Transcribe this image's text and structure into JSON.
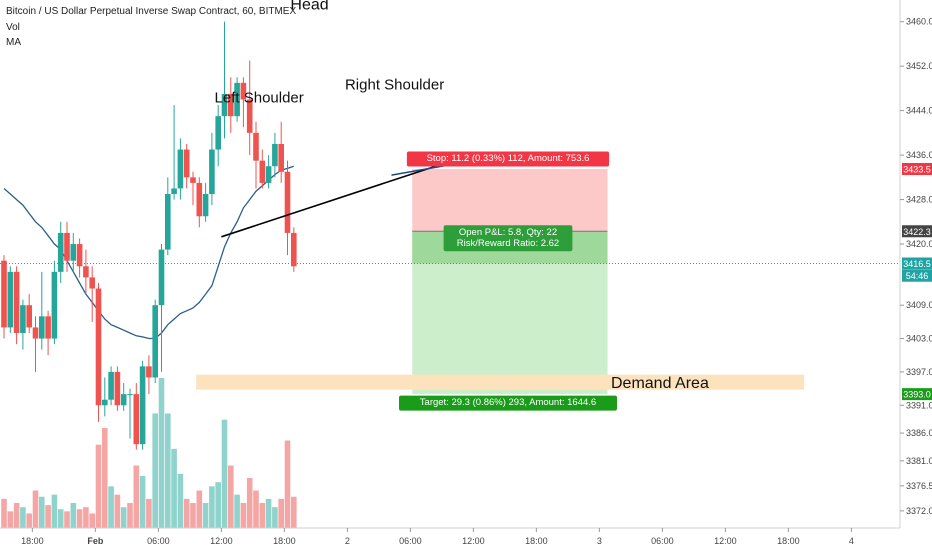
{
  "header": {
    "title": "Bitcoin / US Dollar Perpetual Inverse Swap Contract, 60, BITMEX",
    "indicators": [
      "Vol",
      "MA"
    ]
  },
  "colors": {
    "up": "#26a69a",
    "down": "#ef5350",
    "up_vol": "#8fd3cc",
    "down_vol": "#f4a6a4",
    "ma": "#2a5f8a",
    "stop_zone": "#fcc8c8",
    "target_zone": "#cdeecb",
    "current_zone": "#9fd89b",
    "demand_zone": "#fde3bd",
    "stop_label_bg": "#f23645",
    "target_label_bg": "#1a9c1a",
    "pnl_label_bg": "#2e9e3a",
    "price_line": "#22a3a3"
  },
  "chart_data": {
    "type": "candlestick",
    "y_axis": {
      "range": [
        3370,
        3463
      ],
      "ticks": [
        "3460.0",
        "3452.0",
        "3444.0",
        "3436.0",
        "3428.0",
        "3420.0",
        "3409.0",
        "3403.0",
        "3397.0",
        "3391.0",
        "3386.0",
        "3381.0",
        "3376.5",
        "3372.0"
      ],
      "tick_values": [
        3460,
        3452,
        3444,
        3436,
        3428,
        3420,
        3409,
        3403,
        3397,
        3391,
        3386,
        3381,
        3376.5,
        3372
      ]
    },
    "x_axis": {
      "labels": [
        "18:00",
        "Feb",
        "06:00",
        "12:00",
        "18:00",
        "2",
        "06:00",
        "12:00",
        "18:00",
        "3",
        "06:00",
        "12:00",
        "18:00",
        "4"
      ],
      "label_bars": [
        4.5,
        14.5,
        24.5,
        34.5,
        44.5,
        54.5,
        64.5,
        74.5,
        84.5,
        94.5,
        104.5,
        114.5,
        124.5,
        134.5
      ]
    },
    "price_labels": [
      {
        "name": "stop-price",
        "text": "3433.5",
        "value": 3433.5,
        "color": "#f23645"
      },
      {
        "name": "entry-price",
        "text": "3422.3",
        "value": 3422.3,
        "color": "#444444"
      },
      {
        "name": "current-price",
        "text": "3416.5",
        "value": 3416.5,
        "color": "#22a3a3"
      },
      {
        "name": "countdown",
        "text": "54:46",
        "value": 3414.3,
        "color": "#22a3a3"
      },
      {
        "name": "target-price",
        "text": "3393.0",
        "value": 3393.0,
        "color": "#1a9c1a"
      }
    ],
    "candles": [
      {
        "o": 3417,
        "h": 3418,
        "l": 3403,
        "c": 3405
      },
      {
        "o": 3405,
        "h": 3416,
        "l": 3404,
        "c": 3415
      },
      {
        "o": 3415,
        "h": 3416,
        "l": 3402,
        "c": 3404
      },
      {
        "o": 3404,
        "h": 3410,
        "l": 3401,
        "c": 3409
      },
      {
        "o": 3409,
        "h": 3411,
        "l": 3404,
        "c": 3405
      },
      {
        "o": 3405,
        "h": 3407,
        "l": 3397,
        "c": 3403
      },
      {
        "o": 3403,
        "h": 3415,
        "l": 3401,
        "c": 3407
      },
      {
        "o": 3407,
        "h": 3408,
        "l": 3400,
        "c": 3403
      },
      {
        "o": 3403,
        "h": 3417,
        "l": 3402,
        "c": 3415
      },
      {
        "o": 3415,
        "h": 3424,
        "l": 3413,
        "c": 3422
      },
      {
        "o": 3422,
        "h": 3424,
        "l": 3415,
        "c": 3417
      },
      {
        "o": 3417,
        "h": 3422,
        "l": 3415,
        "c": 3420
      },
      {
        "o": 3420,
        "h": 3421,
        "l": 3414,
        "c": 3416
      },
      {
        "o": 3416,
        "h": 3419,
        "l": 3411,
        "c": 3414
      },
      {
        "o": 3414,
        "h": 3416,
        "l": 3406,
        "c": 3412
      },
      {
        "o": 3412,
        "h": 3413,
        "l": 3388,
        "c": 3391
      },
      {
        "o": 3391,
        "h": 3396,
        "l": 3389,
        "c": 3392
      },
      {
        "o": 3392,
        "h": 3398,
        "l": 3391,
        "c": 3397
      },
      {
        "o": 3397,
        "h": 3398,
        "l": 3390,
        "c": 3391
      },
      {
        "o": 3391,
        "h": 3395,
        "l": 3390,
        "c": 3393
      },
      {
        "o": 3393,
        "h": 3394,
        "l": 3385,
        "c": 3393
      },
      {
        "o": 3393,
        "h": 3395,
        "l": 3383,
        "c": 3384
      },
      {
        "o": 3384,
        "h": 3399,
        "l": 3383,
        "c": 3398
      },
      {
        "o": 3398,
        "h": 3400,
        "l": 3393,
        "c": 3396
      },
      {
        "o": 3396,
        "h": 3410,
        "l": 3395,
        "c": 3409
      },
      {
        "o": 3409,
        "h": 3420,
        "l": 3397,
        "c": 3419
      },
      {
        "o": 3419,
        "h": 3432,
        "l": 3418,
        "c": 3429
      },
      {
        "o": 3429,
        "h": 3445,
        "l": 3428,
        "c": 3430
      },
      {
        "o": 3430,
        "h": 3439,
        "l": 3428,
        "c": 3437
      },
      {
        "o": 3437,
        "h": 3438,
        "l": 3430,
        "c": 3432
      },
      {
        "o": 3432,
        "h": 3433,
        "l": 3427,
        "c": 3431
      },
      {
        "o": 3431,
        "h": 3432,
        "l": 3423,
        "c": 3425
      },
      {
        "o": 3425,
        "h": 3431,
        "l": 3424,
        "c": 3429
      },
      {
        "o": 3429,
        "h": 3440,
        "l": 3427,
        "c": 3437
      },
      {
        "o": 3437,
        "h": 3445,
        "l": 3434,
        "c": 3443
      },
      {
        "o": 3443,
        "h": 3460,
        "l": 3439,
        "c": 3447
      },
      {
        "o": 3447,
        "h": 3450,
        "l": 3440,
        "c": 3443
      },
      {
        "o": 3443,
        "h": 3450,
        "l": 3442,
        "c": 3449
      },
      {
        "o": 3449,
        "h": 3450,
        "l": 3441,
        "c": 3446
      },
      {
        "o": 3446,
        "h": 3453,
        "l": 3436,
        "c": 3440
      },
      {
        "o": 3440,
        "h": 3442,
        "l": 3430,
        "c": 3435
      },
      {
        "o": 3435,
        "h": 3437,
        "l": 3430,
        "c": 3431
      },
      {
        "o": 3431,
        "h": 3436,
        "l": 3430,
        "c": 3434
      },
      {
        "o": 3434,
        "h": 3440,
        "l": 3432,
        "c": 3438
      },
      {
        "o": 3438,
        "h": 3442,
        "l": 3431,
        "c": 3433
      },
      {
        "o": 3433,
        "h": 3435,
        "l": 3418,
        "c": 3422
      },
      {
        "o": 3422,
        "h": 3423,
        "l": 3415,
        "c": 3416
      }
    ],
    "volume": [
      {
        "v": 14,
        "up": false
      },
      {
        "v": 8,
        "up": false
      },
      {
        "v": 12,
        "up": false
      },
      {
        "v": 10,
        "up": true
      },
      {
        "v": 7,
        "up": false
      },
      {
        "v": 18,
        "up": false
      },
      {
        "v": 15,
        "up": true
      },
      {
        "v": 11,
        "up": false
      },
      {
        "v": 16,
        "up": true
      },
      {
        "v": 9,
        "up": true
      },
      {
        "v": 8,
        "up": false
      },
      {
        "v": 12,
        "up": true
      },
      {
        "v": 9,
        "up": false
      },
      {
        "v": 10,
        "up": false
      },
      {
        "v": 7,
        "up": false
      },
      {
        "v": 40,
        "up": false
      },
      {
        "v": 48,
        "up": false
      },
      {
        "v": 20,
        "up": true
      },
      {
        "v": 16,
        "up": false
      },
      {
        "v": 10,
        "up": true
      },
      {
        "v": 12,
        "up": false
      },
      {
        "v": 30,
        "up": false
      },
      {
        "v": 25,
        "up": true
      },
      {
        "v": 14,
        "up": false
      },
      {
        "v": 55,
        "up": true
      },
      {
        "v": 72,
        "up": true
      },
      {
        "v": 55,
        "up": true
      },
      {
        "v": 38,
        "up": true
      },
      {
        "v": 26,
        "up": true
      },
      {
        "v": 14,
        "up": false
      },
      {
        "v": 12,
        "up": false
      },
      {
        "v": 18,
        "up": false
      },
      {
        "v": 12,
        "up": true
      },
      {
        "v": 20,
        "up": true
      },
      {
        "v": 22,
        "up": true
      },
      {
        "v": 52,
        "up": true
      },
      {
        "v": 30,
        "up": false
      },
      {
        "v": 16,
        "up": true
      },
      {
        "v": 12,
        "up": false
      },
      {
        "v": 24,
        "up": false
      },
      {
        "v": 18,
        "up": false
      },
      {
        "v": 12,
        "up": false
      },
      {
        "v": 14,
        "up": true
      },
      {
        "v": 10,
        "up": true
      },
      {
        "v": 14,
        "up": false
      },
      {
        "v": 42,
        "up": false
      },
      {
        "v": 15,
        "up": false
      }
    ],
    "ma": [
      3430,
      3429,
      3428,
      3427,
      3425.5,
      3424,
      3423,
      3421.5,
      3420,
      3419,
      3417,
      3415,
      3413,
      3411,
      3409.5,
      3408,
      3406.5,
      3405.5,
      3405,
      3404.5,
      3404,
      3403.5,
      3403.3,
      3403,
      3403,
      3404,
      3405.5,
      3406.5,
      3407.5,
      3408,
      3408.5,
      3409.5,
      3411,
      3412.5,
      3416,
      3419.5,
      3422,
      3424,
      3426.5,
      3428,
      3429.5,
      3430.5,
      3431.5,
      3432.5,
      3433.3,
      3433.6,
      3434
    ],
    "neckline": {
      "from": {
        "bar": 34.5,
        "value": 3421.3
      },
      "to": {
        "bar": 68.5,
        "value": 3434.0
      }
    },
    "neckline_segment2": {
      "from": {
        "bar": 61.5,
        "value": 3432.4
      },
      "to": {
        "bar": 70.5,
        "value": 3434.2
      }
    },
    "position": {
      "from_bar": 64.8,
      "to_bar": 95.8,
      "stop": 3433.5,
      "entry": 3422.3,
      "current": 3416.5,
      "target": 3393.0
    },
    "demand_area": {
      "from_bar": 30.5,
      "to_bar": 127,
      "top": 3396.5,
      "bottom": 3393.8,
      "label": "Demand Area"
    },
    "annotations": [
      {
        "name": "head-label",
        "text": "Head",
        "bar": 48.5,
        "value": 3462.2,
        "size": 16
      },
      {
        "name": "left-shoulder-label",
        "text": "Left Shoulder",
        "bar": 40.5,
        "value": 3445.5,
        "size": 15
      },
      {
        "name": "right-shoulder-label",
        "text": "Right Shoulder",
        "bar": 62,
        "value": 3447.8,
        "size": 15
      }
    ],
    "labels": {
      "stop": "Stop: 11.2 (0.33%) 112, Amount: 753.6",
      "pnl_line1": "Open P&L: 5.8, Qty: 22",
      "pnl_line2": "Risk/Reward Ratio: 2.62",
      "target": "Target: 29.3 (0.86%) 293, Amount: 1644.6"
    }
  }
}
